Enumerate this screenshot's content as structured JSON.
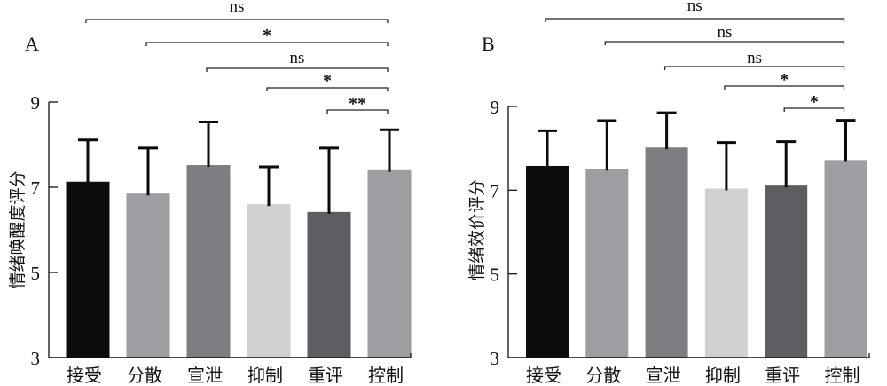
{
  "chart_data": [
    {
      "type": "bar",
      "panel_label": "A",
      "ylabel": "情绪唤醒度评分",
      "xlabel": "",
      "categories": [
        "接受",
        "分散",
        "宣泄",
        "抑制",
        "重评",
        "控制"
      ],
      "values": [
        7.13,
        6.85,
        7.52,
        6.6,
        6.42,
        7.4
      ],
      "error_upper": [
        8.11,
        7.92,
        8.53,
        7.48,
        7.92,
        8.35
      ],
      "colors": [
        "#0c0c0c",
        "#9e9da2",
        "#7f7d82",
        "#d1d1d3",
        "#5f5d61",
        "#9e9da2"
      ],
      "ylim": [
        3,
        9
      ],
      "yticks": [
        3,
        5,
        7,
        9
      ],
      "yticklabels": [
        "3",
        "5",
        "7",
        "9"
      ],
      "grid": false,
      "significance": [
        {
          "from": "接受",
          "to": "控制",
          "label": "ns"
        },
        {
          "from": "分散",
          "to": "控制",
          "label": "*"
        },
        {
          "from": "宣泄",
          "to": "控制",
          "label": "ns"
        },
        {
          "from": "抑制",
          "to": "控制",
          "label": "*"
        },
        {
          "from": "重评",
          "to": "控制",
          "label": "**"
        }
      ]
    },
    {
      "type": "bar",
      "panel_label": "B",
      "ylabel": "情绪效价评分",
      "xlabel": "",
      "categories": [
        "接受",
        "分散",
        "宣泄",
        "抑制",
        "重评",
        "控制"
      ],
      "values": [
        7.58,
        7.51,
        8.02,
        7.04,
        7.11,
        7.72
      ],
      "error_upper": [
        8.42,
        8.66,
        8.85,
        8.14,
        8.16,
        8.67
      ],
      "colors": [
        "#0c0c0c",
        "#9e9da2",
        "#7f7d82",
        "#d1d1d3",
        "#5f5d61",
        "#9e9da2"
      ],
      "ylim": [
        3,
        9
      ],
      "yticks": [
        3,
        5,
        7,
        9
      ],
      "yticklabels": [
        "3",
        "5",
        "7",
        "9"
      ],
      "grid": false,
      "significance": [
        {
          "from": "接受",
          "to": "控制",
          "label": "ns"
        },
        {
          "from": "分散",
          "to": "控制",
          "label": "ns"
        },
        {
          "from": "宣泄",
          "to": "控制",
          "label": "ns"
        },
        {
          "from": "抑制",
          "to": "控制",
          "label": "*"
        },
        {
          "from": "重评",
          "to": "控制",
          "label": "*"
        }
      ]
    }
  ]
}
